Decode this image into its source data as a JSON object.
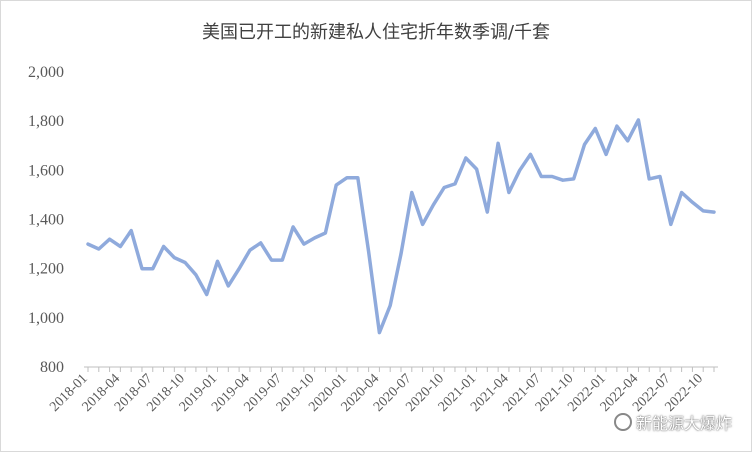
{
  "chart_data": {
    "type": "line",
    "title": "美国已开工的新建私人住宅折年数季调/千套",
    "xlabel": "",
    "ylabel": "",
    "ylim": [
      800,
      2000
    ],
    "yticks": [
      "800",
      "1,000",
      "1,200",
      "1,400",
      "1,600",
      "1,800",
      "2,000"
    ],
    "ytick_values": [
      800,
      1000,
      1200,
      1400,
      1600,
      1800,
      2000
    ],
    "xtick_labels": [
      "2018-01",
      "2018-04",
      "2018-07",
      "2018-10",
      "2019-01",
      "2019-04",
      "2019-07",
      "2019-10",
      "2020-01",
      "2020-04",
      "2020-07",
      "2020-10",
      "2021-01",
      "2021-04",
      "2021-07",
      "2021-10",
      "2022-01",
      "2022-04",
      "2022-07",
      "2022-10"
    ],
    "grid": false,
    "legend": "none",
    "line_color": "#8faadc",
    "x": [
      "2018-01",
      "2018-02",
      "2018-03",
      "2018-04",
      "2018-05",
      "2018-06",
      "2018-07",
      "2018-08",
      "2018-09",
      "2018-10",
      "2018-11",
      "2018-12",
      "2019-01",
      "2019-02",
      "2019-03",
      "2019-04",
      "2019-05",
      "2019-06",
      "2019-07",
      "2019-08",
      "2019-09",
      "2019-10",
      "2019-11",
      "2019-12",
      "2020-01",
      "2020-02",
      "2020-03",
      "2020-04",
      "2020-05",
      "2020-06",
      "2020-07",
      "2020-08",
      "2020-09",
      "2020-10",
      "2020-11",
      "2020-12",
      "2021-01",
      "2021-02",
      "2021-03",
      "2021-04",
      "2021-05",
      "2021-06",
      "2021-07",
      "2021-08",
      "2021-09",
      "2021-10",
      "2021-11",
      "2021-12",
      "2022-01",
      "2022-02",
      "2022-03",
      "2022-04",
      "2022-05",
      "2022-06",
      "2022-07",
      "2022-08",
      "2022-09",
      "2022-10",
      "2022-11"
    ],
    "values": [
      1300,
      1280,
      1320,
      1290,
      1355,
      1200,
      1200,
      1290,
      1245,
      1225,
      1175,
      1095,
      1230,
      1130,
      1200,
      1275,
      1305,
      1235,
      1235,
      1370,
      1300,
      1325,
      1345,
      1540,
      1570,
      1570,
      1270,
      940,
      1050,
      1260,
      1510,
      1380,
      1460,
      1530,
      1545,
      1650,
      1605,
      1430,
      1710,
      1510,
      1600,
      1665,
      1575,
      1575,
      1560,
      1565,
      1705,
      1770,
      1665,
      1780,
      1720,
      1805,
      1565,
      1575,
      1380,
      1510,
      1470,
      1435,
      1430
    ]
  },
  "watermark": {
    "text": "新能源大爆炸",
    "icon": "wechat-icon"
  }
}
